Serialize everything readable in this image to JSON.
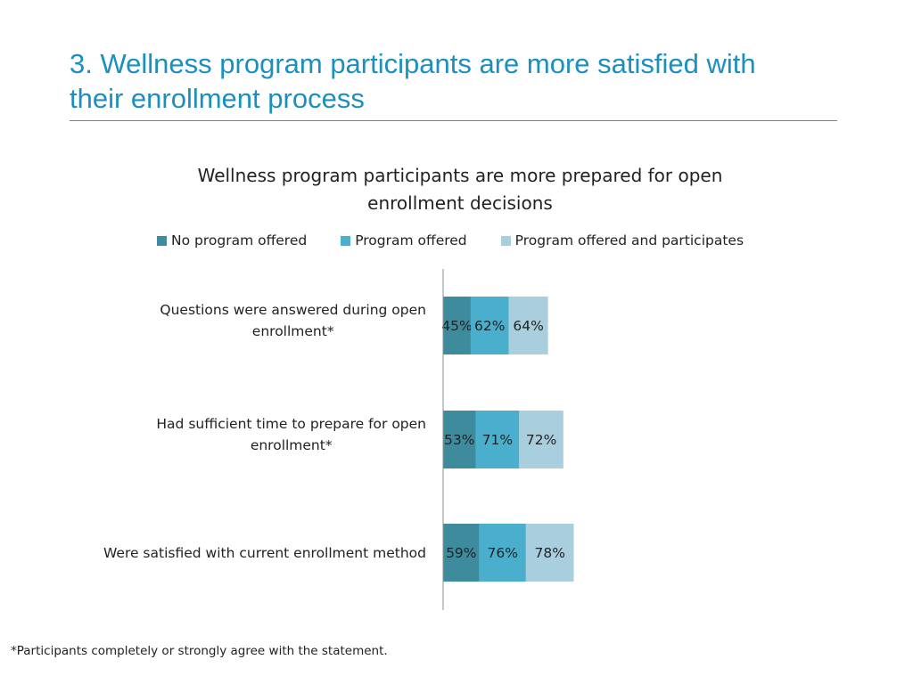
{
  "slide": {
    "title_line1": "3. Wellness program participants  are more satisfied with",
    "title_line2": "their enrollment process",
    "accent_color": "#1b8fbf",
    "footnote": "*Participants completely or strongly agree with the statement."
  },
  "chart_data": {
    "type": "bar",
    "orientation": "horizontal",
    "stacked": true,
    "title_line1": "Wellness program participants are more prepared for open",
    "title_line2": "enrollment decisions",
    "legend_position": "top",
    "categories": [
      [
        "Questions were answered during open",
        "enrollment*"
      ],
      [
        "Had sufficient time to prepare for open",
        "enrollment*"
      ],
      [
        "Were satisfied with current enrollment method"
      ]
    ],
    "series": [
      {
        "name": "No program offered",
        "color": "#3e8b9e",
        "values": [
          45,
          53,
          59
        ],
        "labels": [
          "45%",
          "53%",
          "59%"
        ]
      },
      {
        "name": "Program offered",
        "color": "#4aafcc",
        "values": [
          62,
          71,
          76
        ],
        "labels": [
          "62%",
          "71%",
          "76%"
        ]
      },
      {
        "name": "Program offered and participates",
        "color": "#a9cfdf",
        "values": [
          64,
          72,
          78
        ],
        "labels": [
          "64%",
          "72%",
          "78%"
        ]
      }
    ],
    "xlabel": "",
    "ylabel": "",
    "grid": false
  }
}
